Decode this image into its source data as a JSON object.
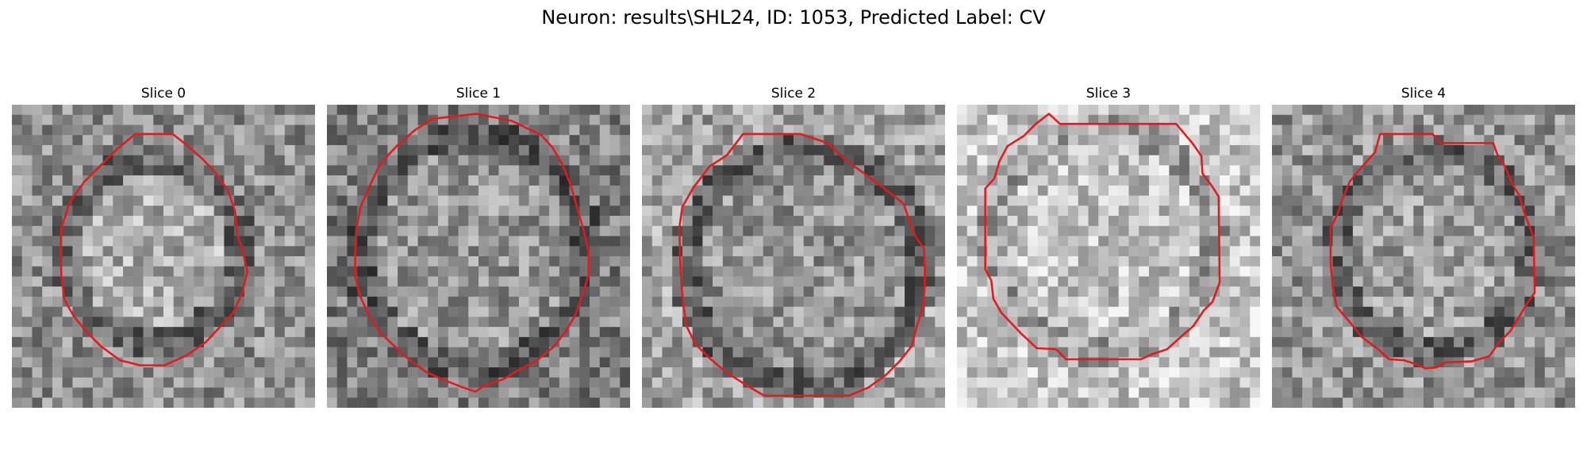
{
  "figure": {
    "title": "Neuron: results\\SHL24, ID: 1053, Predicted Label: CV"
  },
  "colors": {
    "contour": "#e31a1c",
    "background": "#ffffff"
  },
  "panels": [
    {
      "title": "Slice 0"
    },
    {
      "title": "Slice 1"
    },
    {
      "title": "Slice 2"
    },
    {
      "title": "Slice 3"
    },
    {
      "title": "Slice 4"
    }
  ]
}
